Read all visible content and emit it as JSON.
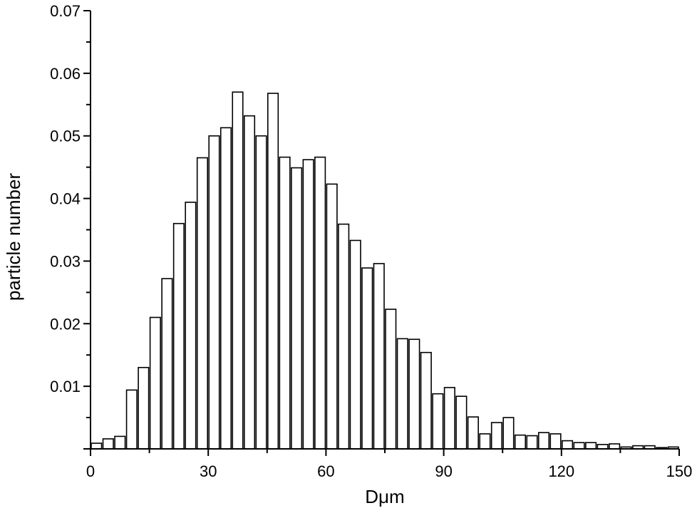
{
  "chart_data": {
    "type": "bar",
    "title": "",
    "xlabel": "Dμm",
    "ylabel": "particle number",
    "xlim": [
      0,
      150
    ],
    "ylim": [
      0,
      0.07
    ],
    "bin_width": 3,
    "x_ticks": [
      "0",
      "30",
      "60",
      "90",
      "120",
      "150"
    ],
    "y_ticks": [
      "0.01",
      "0.02",
      "0.03",
      "0.04",
      "0.05",
      "0.06",
      "0.07"
    ],
    "x": [
      1.5,
      4.5,
      7.5,
      10.5,
      13.5,
      16.5,
      19.5,
      22.5,
      25.5,
      28.5,
      31.5,
      34.5,
      37.5,
      40.5,
      43.5,
      46.5,
      49.5,
      52.5,
      55.5,
      58.5,
      61.5,
      64.5,
      67.5,
      70.5,
      73.5,
      76.5,
      79.5,
      82.5,
      85.5,
      88.5,
      91.5,
      94.5,
      97.5,
      100.5,
      103.5,
      106.5,
      109.5,
      112.5,
      115.5,
      118.5,
      121.5,
      124.5,
      127.5,
      130.5,
      133.5,
      136.5,
      139.5,
      142.5,
      145.5,
      148.5
    ],
    "values": [
      0.0009,
      0.0016,
      0.002,
      0.0094,
      0.013,
      0.021,
      0.0272,
      0.036,
      0.0394,
      0.0465,
      0.05,
      0.0513,
      0.057,
      0.0532,
      0.05,
      0.0568,
      0.0466,
      0.0449,
      0.0462,
      0.0466,
      0.0423,
      0.0359,
      0.0333,
      0.0289,
      0.0296,
      0.0223,
      0.0176,
      0.0175,
      0.0154,
      0.0088,
      0.0098,
      0.0084,
      0.0051,
      0.0024,
      0.0042,
      0.005,
      0.0022,
      0.0021,
      0.0026,
      0.0024,
      0.0013,
      0.001,
      0.001,
      0.0007,
      0.0008,
      0.0003,
      0.0005,
      0.0005,
      0.0002,
      0.0003
    ],
    "grid": false,
    "legend": "none"
  }
}
